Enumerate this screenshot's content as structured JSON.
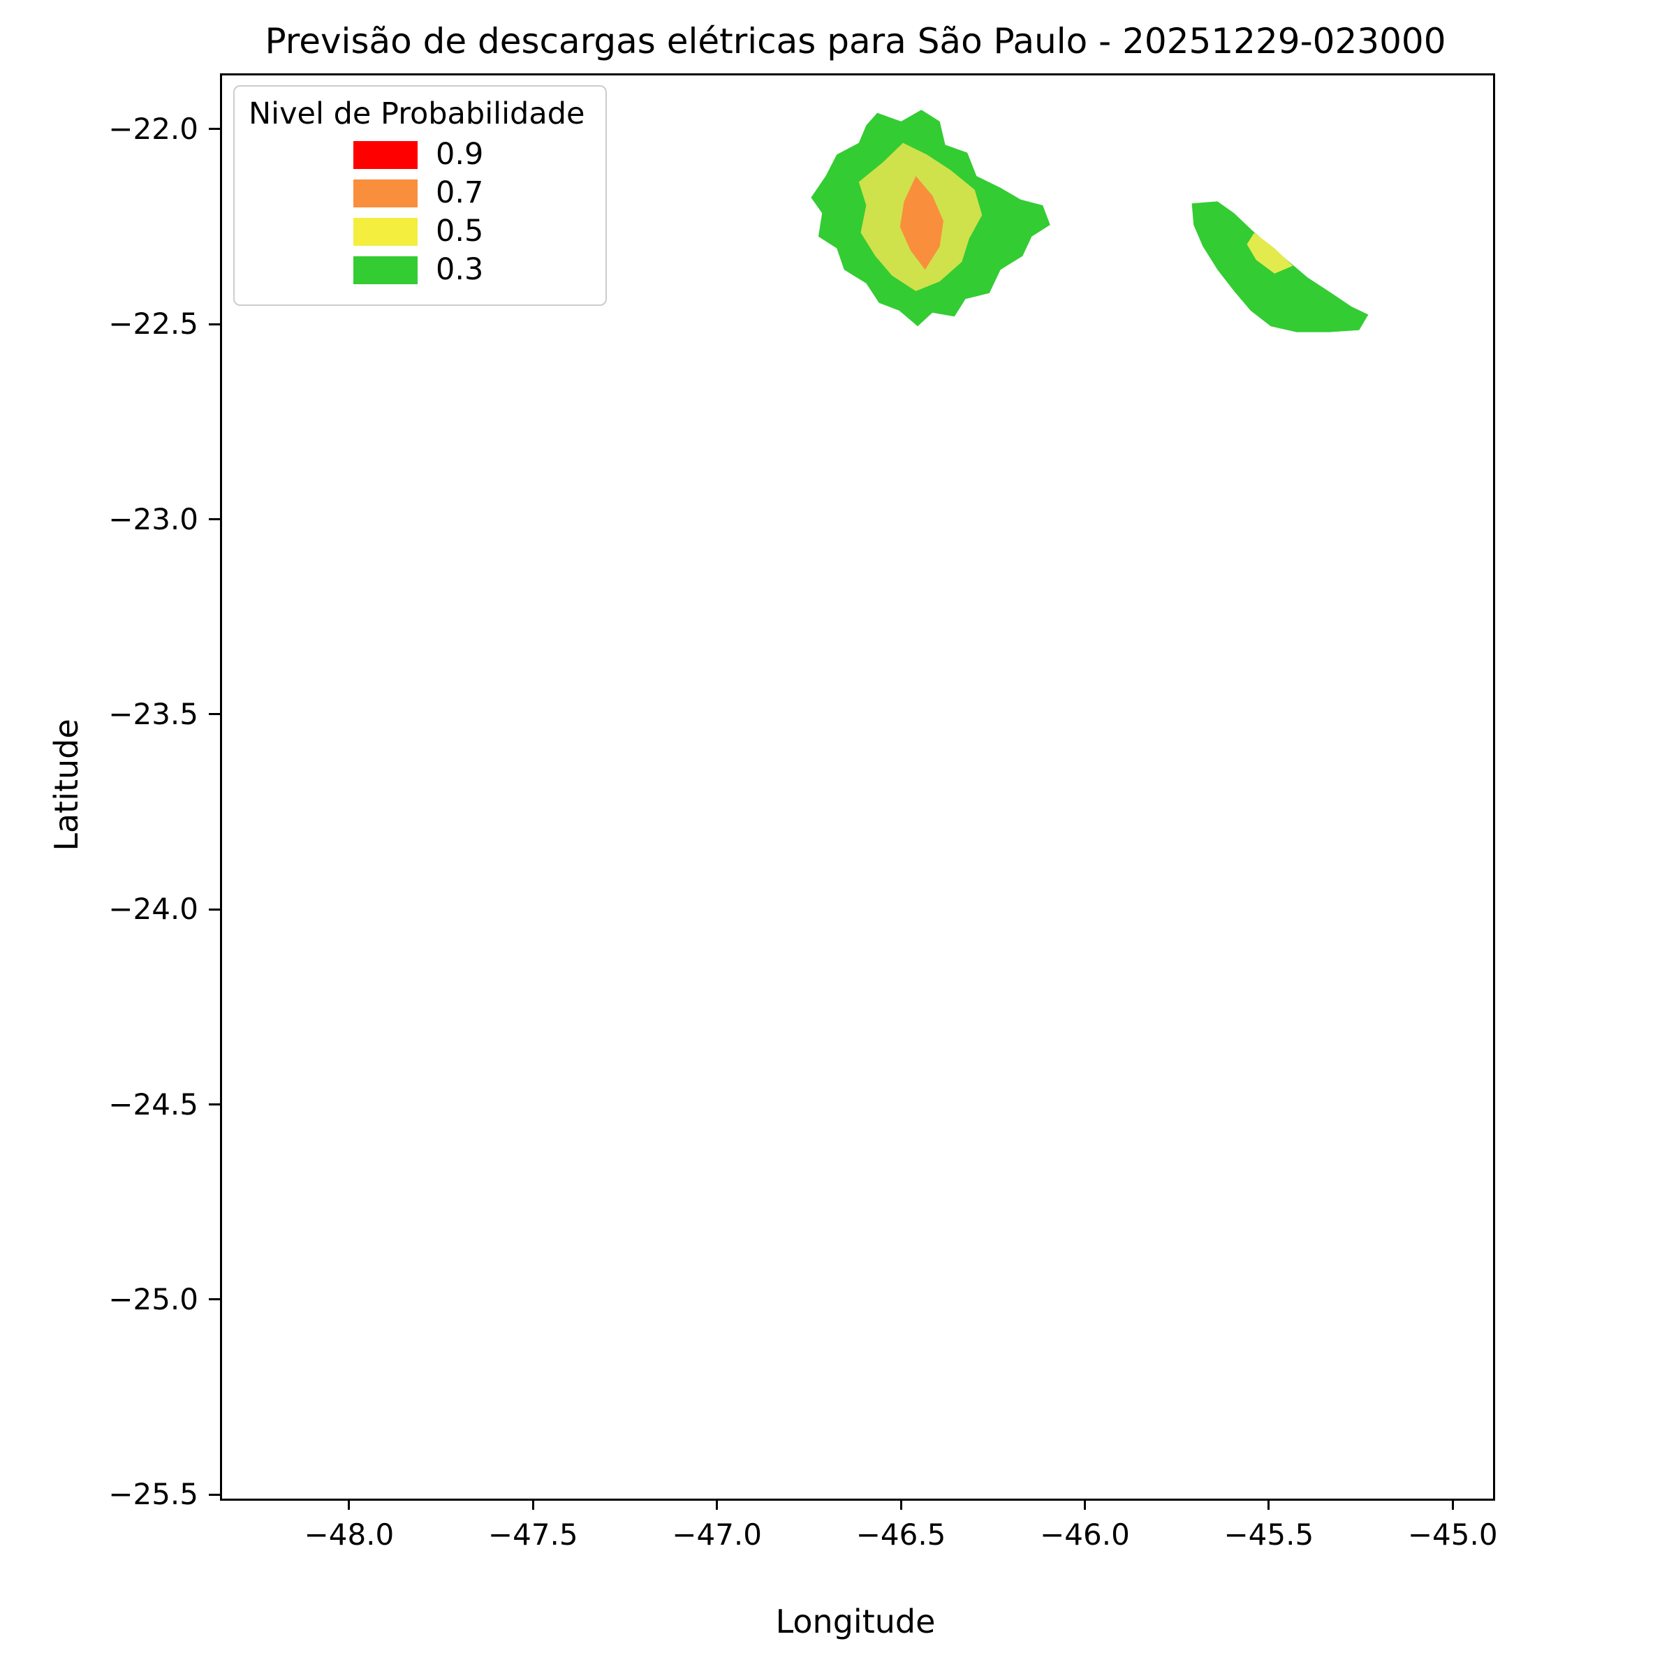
{
  "title": "Previsão de descargas elétricas para São Paulo - 20251229-023000",
  "axes": {
    "xlabel": "Longitude",
    "ylabel": "Latitude",
    "xlim": [
      -48.351,
      -44.896
    ],
    "ylim": [
      -25.505,
      -21.857
    ],
    "x_ticks": [
      {
        "value": -48.0,
        "label": "−48.0"
      },
      {
        "value": -47.5,
        "label": "−47.5"
      },
      {
        "value": -47.0,
        "label": "−47.0"
      },
      {
        "value": -46.5,
        "label": "−46.5"
      },
      {
        "value": -46.0,
        "label": "−46.0"
      },
      {
        "value": -45.5,
        "label": "−45.5"
      },
      {
        "value": -45.0,
        "label": "−45.0"
      }
    ],
    "y_ticks": [
      {
        "value": -22.0,
        "label": "−22.0"
      },
      {
        "value": -22.5,
        "label": "−22.5"
      },
      {
        "value": -23.0,
        "label": "−23.0"
      },
      {
        "value": -23.5,
        "label": "−23.5"
      },
      {
        "value": -24.0,
        "label": "−24.0"
      },
      {
        "value": -24.5,
        "label": "−24.5"
      },
      {
        "value": -25.0,
        "label": "−25.0"
      },
      {
        "value": -25.5,
        "label": "−25.5"
      }
    ]
  },
  "legend": {
    "title": "Nivel de Probabilidade",
    "items": [
      {
        "label": "0.9",
        "color": "#ff0000"
      },
      {
        "label": "0.7",
        "color": "#f98e3d"
      },
      {
        "label": "0.5",
        "color": "#f4ee3f"
      },
      {
        "label": "0.3",
        "color": "#33cc33"
      }
    ]
  },
  "chart_data": {
    "type": "area",
    "subtype": "filled-contour-map",
    "title": "Previsão de descargas elétricas para São Paulo - 20251229-023000",
    "xlabel": "Longitude",
    "ylabel": "Latitude",
    "xlim": [
      -48.351,
      -44.896
    ],
    "ylim": [
      -25.505,
      -21.857
    ],
    "grid": false,
    "legend_position": "upper-left",
    "levels": [
      {
        "probability": 0.9,
        "color": "#ff0000"
      },
      {
        "probability": 0.7,
        "color": "#f98e3d"
      },
      {
        "probability": 0.5,
        "color": "#f4ee3f"
      },
      {
        "probability": 0.3,
        "color": "#33cc33"
      }
    ],
    "regions": [
      {
        "name": "region-west-prob-0.3",
        "level": 0.3,
        "color": "#33cc33",
        "points": [
          [
            -46.57,
            -21.953
          ],
          [
            -46.505,
            -21.975
          ],
          [
            -46.45,
            -21.945
          ],
          [
            -46.4,
            -21.975
          ],
          [
            -46.385,
            -22.035
          ],
          [
            -46.325,
            -22.055
          ],
          [
            -46.3,
            -22.115
          ],
          [
            -46.235,
            -22.145
          ],
          [
            -46.18,
            -22.175
          ],
          [
            -46.12,
            -22.19
          ],
          [
            -46.1,
            -22.24
          ],
          [
            -46.15,
            -22.27
          ],
          [
            -46.175,
            -22.32
          ],
          [
            -46.235,
            -22.355
          ],
          [
            -46.265,
            -22.415
          ],
          [
            -46.33,
            -22.43
          ],
          [
            -46.36,
            -22.475
          ],
          [
            -46.42,
            -22.465
          ],
          [
            -46.46,
            -22.5
          ],
          [
            -46.51,
            -22.46
          ],
          [
            -46.565,
            -22.44
          ],
          [
            -46.6,
            -22.39
          ],
          [
            -46.66,
            -22.355
          ],
          [
            -46.68,
            -22.3
          ],
          [
            -46.73,
            -22.27
          ],
          [
            -46.72,
            -22.21
          ],
          [
            -46.75,
            -22.17
          ],
          [
            -46.71,
            -22.115
          ],
          [
            -46.68,
            -22.06
          ],
          [
            -46.62,
            -22.03
          ],
          [
            -46.6,
            -21.985
          ]
        ]
      },
      {
        "name": "region-west-prob-0.5",
        "level": 0.5,
        "color": "#cfe24b",
        "points": [
          [
            -46.5,
            -22.03
          ],
          [
            -46.435,
            -22.06
          ],
          [
            -46.37,
            -22.1
          ],
          [
            -46.305,
            -22.15
          ],
          [
            -46.285,
            -22.215
          ],
          [
            -46.32,
            -22.275
          ],
          [
            -46.34,
            -22.335
          ],
          [
            -46.4,
            -22.385
          ],
          [
            -46.465,
            -22.41
          ],
          [
            -46.53,
            -22.37
          ],
          [
            -46.575,
            -22.32
          ],
          [
            -46.615,
            -22.26
          ],
          [
            -46.6,
            -22.19
          ],
          [
            -46.62,
            -22.13
          ],
          [
            -46.555,
            -22.08
          ]
        ]
      },
      {
        "name": "region-west-prob-0.7",
        "level": 0.7,
        "color": "#f98e3d",
        "points": [
          [
            -46.465,
            -22.115
          ],
          [
            -46.42,
            -22.165
          ],
          [
            -46.39,
            -22.23
          ],
          [
            -46.4,
            -22.295
          ],
          [
            -46.44,
            -22.355
          ],
          [
            -46.48,
            -22.305
          ],
          [
            -46.508,
            -22.245
          ],
          [
            -46.497,
            -22.18
          ]
        ]
      },
      {
        "name": "region-east-prob-0.3",
        "level": 0.3,
        "color": "#33cc33",
        "points": [
          [
            -45.715,
            -22.185
          ],
          [
            -45.645,
            -22.18
          ],
          [
            -45.6,
            -22.21
          ],
          [
            -45.55,
            -22.255
          ],
          [
            -45.5,
            -22.295
          ],
          [
            -45.45,
            -22.335
          ],
          [
            -45.4,
            -22.375
          ],
          [
            -45.335,
            -22.415
          ],
          [
            -45.28,
            -22.45
          ],
          [
            -45.235,
            -22.47
          ],
          [
            -45.26,
            -22.51
          ],
          [
            -45.34,
            -22.515
          ],
          [
            -45.43,
            -22.515
          ],
          [
            -45.5,
            -22.5
          ],
          [
            -45.555,
            -22.46
          ],
          [
            -45.6,
            -22.41
          ],
          [
            -45.645,
            -22.355
          ],
          [
            -45.685,
            -22.295
          ],
          [
            -45.71,
            -22.24
          ]
        ]
      },
      {
        "name": "region-east-prob-0.5",
        "level": 0.5,
        "color": "#e3ea4d",
        "points": [
          [
            -45.545,
            -22.26
          ],
          [
            -45.49,
            -22.3
          ],
          [
            -45.44,
            -22.345
          ],
          [
            -45.49,
            -22.365
          ],
          [
            -45.54,
            -22.33
          ],
          [
            -45.565,
            -22.29
          ]
        ]
      }
    ]
  }
}
